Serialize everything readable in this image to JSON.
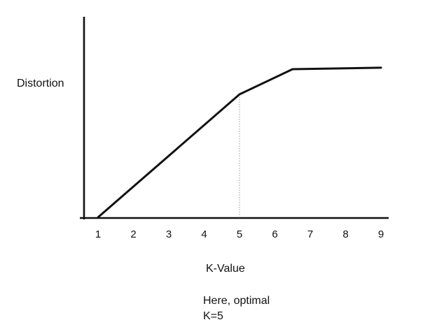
{
  "chart_data": {
    "type": "line",
    "title": "",
    "xlabel": "K-Value",
    "ylabel": "Distortion",
    "xlim": [
      0.85,
      9.15
    ],
    "ylim": [
      0,
      1
    ],
    "x_ticks": [
      "1",
      "2",
      "3",
      "4",
      "5",
      "6",
      "7",
      "8",
      "9"
    ],
    "y_ticks": [],
    "grid": false,
    "legend": "none",
    "series": [
      {
        "x": [
          1,
          5,
          6.5,
          9
        ],
        "y": [
          0,
          0.83,
          1.0,
          1.01
        ]
      }
    ],
    "annotations": [
      {
        "text": "Here, optimal",
        "x": 5
      },
      {
        "text": "K=5",
        "x": 5
      }
    ],
    "colors": {
      "line": "#111111",
      "guide": "#9a9a9a"
    }
  }
}
